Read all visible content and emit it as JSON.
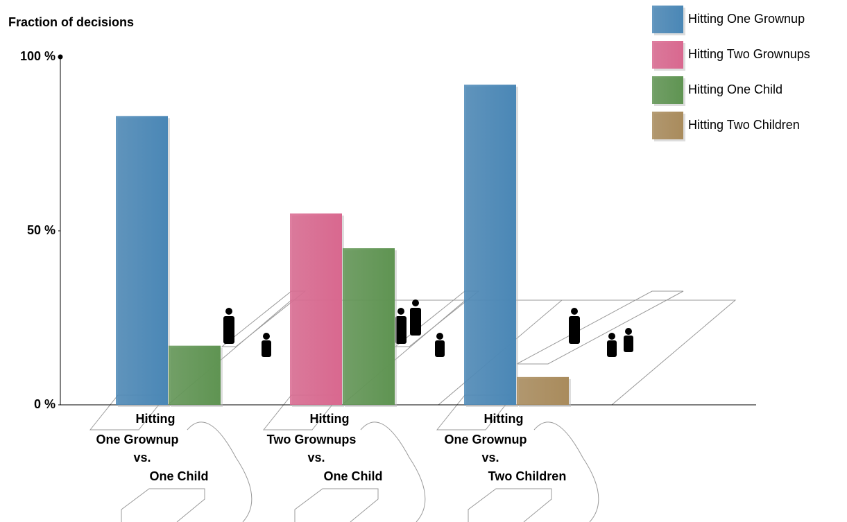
{
  "chart_data": {
    "type": "bar",
    "y_label": "Fraction of decisions",
    "categories": [
      [
        "Hitting",
        "One Grownup",
        "vs.",
        "One Child"
      ],
      [
        "Hitting",
        "Two Grownups",
        "vs.",
        "One Child"
      ],
      [
        "Hitting",
        "One Grownup",
        "vs.",
        "Two Children"
      ]
    ],
    "series": [
      {
        "name": "Hitting One Grownup",
        "color": "#4a87b6",
        "values": [
          83,
          null,
          92
        ]
      },
      {
        "name": "Hitting Two Grownups",
        "color": "#d9688f",
        "values": [
          null,
          55,
          null
        ]
      },
      {
        "name": "Hitting One Child",
        "color": "#5f9452",
        "values": [
          17,
          45,
          null
        ]
      },
      {
        "name": "Hitting Two Children",
        "color": "#a98b5c",
        "values": [
          null,
          null,
          8
        ]
      }
    ],
    "ylim": [
      0,
      100
    ],
    "yticks": [
      {
        "value": 0,
        "label": "0 %"
      },
      {
        "value": 50,
        "label": "50 %"
      },
      {
        "value": 100,
        "label": "100 %"
      }
    ]
  }
}
